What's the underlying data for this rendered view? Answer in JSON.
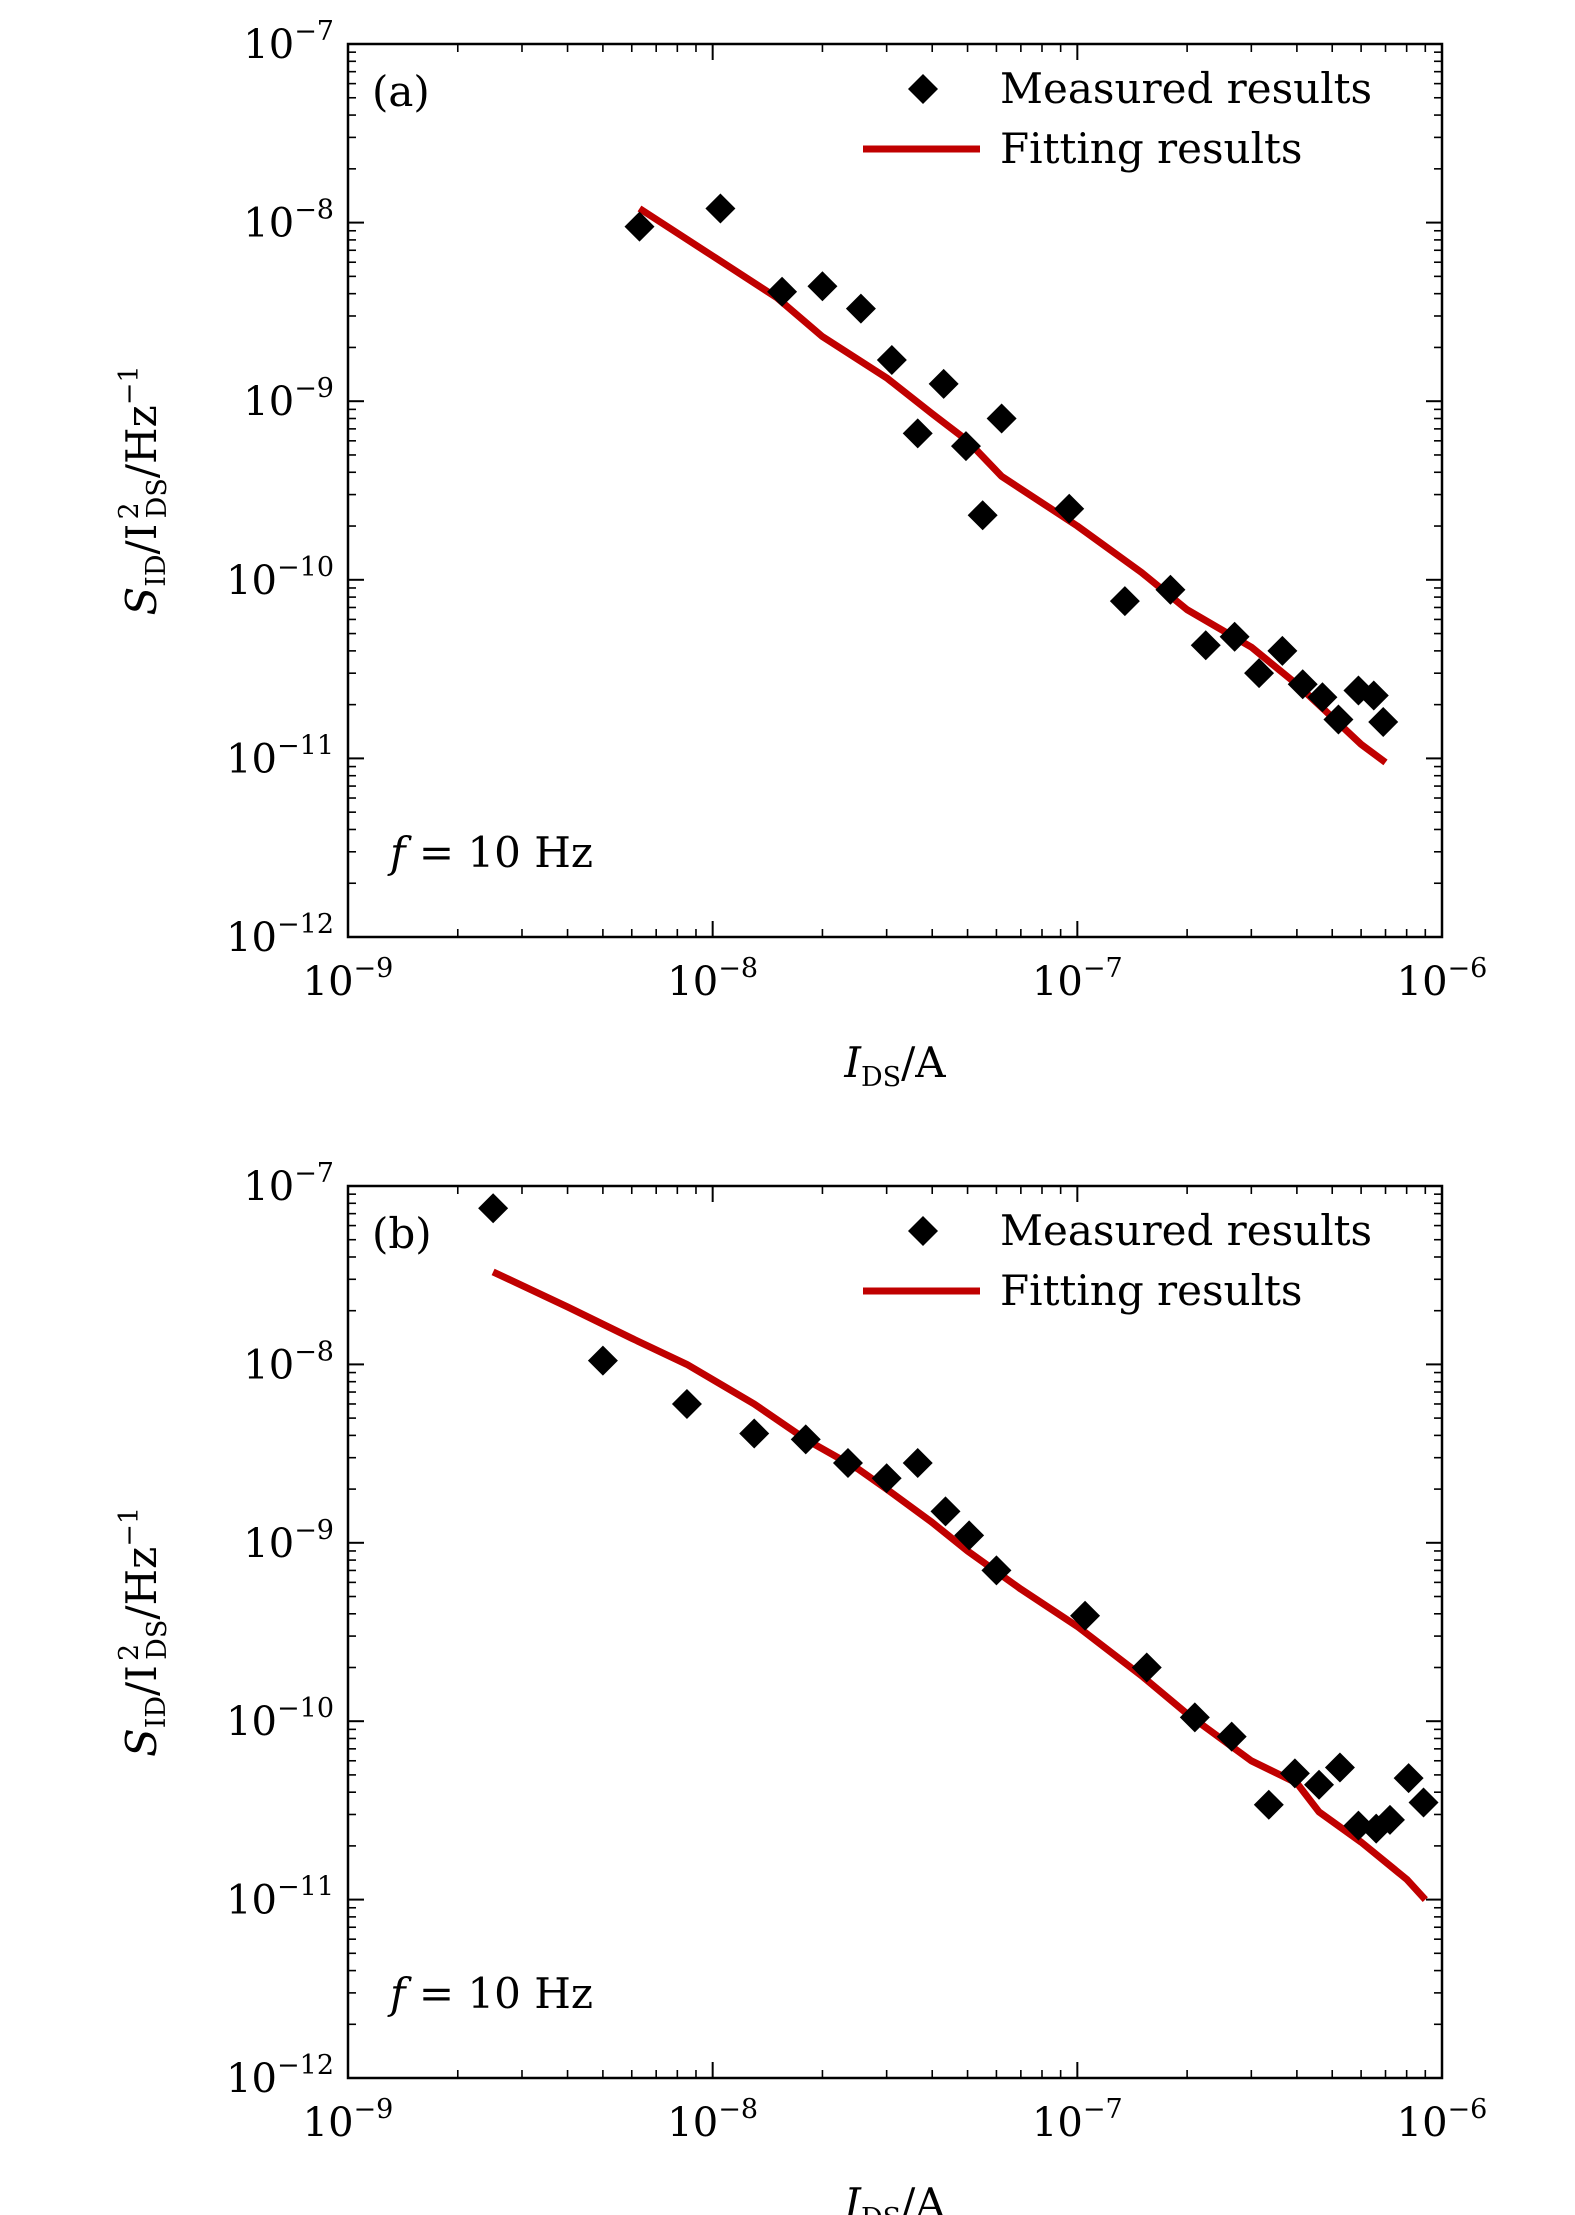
{
  "chart_data": [
    {
      "type": "scatter",
      "panel_label": "(a)",
      "annotation": {
        "var": "f",
        "text": " = 10 Hz"
      },
      "xlabel": {
        "main": "I",
        "sub": "DS",
        "tail": "/A"
      },
      "ylabel": {
        "main": "S",
        "sub": "ID",
        "mid": "/I",
        "sup": "2",
        "sub2": "DS",
        "tail": "/Hz",
        "tail_sup": "−1"
      },
      "xscale": "log",
      "yscale": "log",
      "xlim": [
        1e-09,
        1e-06
      ],
      "ylim": [
        1e-12,
        1e-07
      ],
      "x_ticks": [
        {
          "base": "10",
          "exp": "−9"
        },
        {
          "base": "10",
          "exp": "−8"
        },
        {
          "base": "10",
          "exp": "−7"
        },
        {
          "base": "10",
          "exp": "−6"
        }
      ],
      "y_ticks": [
        {
          "base": "10",
          "exp": "−12"
        },
        {
          "base": "10",
          "exp": "−11"
        },
        {
          "base": "10",
          "exp": "−10"
        },
        {
          "base": "10",
          "exp": "−9"
        },
        {
          "base": "10",
          "exp": "−8"
        },
        {
          "base": "10",
          "exp": "−7"
        }
      ],
      "grid": false,
      "legend": {
        "position": "top-right",
        "entries": [
          "Measured results",
          "Fitting results"
        ]
      },
      "series": [
        {
          "name": "Measured results",
          "style": "diamond",
          "color": "#000000",
          "points": [
            [
              6.3e-09,
              9.5e-09
            ],
            [
              1.05e-08,
              1.2e-08
            ],
            [
              1.55e-08,
              4.1e-09
            ],
            [
              2e-08,
              4.4e-09
            ],
            [
              2.55e-08,
              3.3e-09
            ],
            [
              3.1e-08,
              1.7e-09
            ],
            [
              3.65e-08,
              6.6e-10
            ],
            [
              4.3e-08,
              1.25e-09
            ],
            [
              4.95e-08,
              5.6e-10
            ],
            [
              5.5e-08,
              2.3e-10
            ],
            [
              6.2e-08,
              8e-10
            ],
            [
              9.5e-08,
              2.5e-10
            ],
            [
              1.35e-07,
              7.6e-11
            ],
            [
              1.8e-07,
              8.8e-11
            ],
            [
              2.25e-07,
              4.3e-11
            ],
            [
              2.7e-07,
              4.8e-11
            ],
            [
              3.15e-07,
              3e-11
            ],
            [
              3.65e-07,
              4e-11
            ],
            [
              4.15e-07,
              2.6e-11
            ],
            [
              4.7e-07,
              2.2e-11
            ],
            [
              5.2e-07,
              1.65e-11
            ],
            [
              5.9e-07,
              2.4e-11
            ],
            [
              6.5e-07,
              2.25e-11
            ],
            [
              6.9e-07,
              1.6e-11
            ]
          ]
        },
        {
          "name": "Fitting results",
          "style": "line",
          "color": "#c00000",
          "points": [
            [
              6.3e-09,
              1.2e-08
            ],
            [
              1e-08,
              6.5e-09
            ],
            [
              1.5e-08,
              3.8e-09
            ],
            [
              2e-08,
              2.3e-09
            ],
            [
              3e-08,
              1.35e-09
            ],
            [
              4e-08,
              8.5e-10
            ],
            [
              5e-08,
              6e-10
            ],
            [
              6.2e-08,
              3.8e-10
            ],
            [
              1e-07,
              2e-10
            ],
            [
              1.5e-07,
              1.1e-10
            ],
            [
              2e-07,
              6.8e-11
            ],
            [
              3e-07,
              4.2e-11
            ],
            [
              4e-07,
              2.6e-11
            ],
            [
              5e-07,
              1.7e-11
            ],
            [
              6e-07,
              1.2e-11
            ],
            [
              7e-07,
              9.5e-12
            ]
          ]
        }
      ]
    },
    {
      "type": "scatter",
      "panel_label": "(b)",
      "annotation": {
        "var": "f",
        "text": " = 10 Hz"
      },
      "xlabel": {
        "main": "I",
        "sub": "DS",
        "tail": "/A"
      },
      "ylabel": {
        "main": "S",
        "sub": "ID",
        "mid": "/I",
        "sup": "2",
        "sub2": "DS",
        "tail": "/Hz",
        "tail_sup": "−1"
      },
      "xscale": "log",
      "yscale": "log",
      "xlim": [
        1e-09,
        1e-06
      ],
      "ylim": [
        1e-12,
        1e-07
      ],
      "x_ticks": [
        {
          "base": "10",
          "exp": "−9"
        },
        {
          "base": "10",
          "exp": "−8"
        },
        {
          "base": "10",
          "exp": "−7"
        },
        {
          "base": "10",
          "exp": "−6"
        }
      ],
      "y_ticks": [
        {
          "base": "10",
          "exp": "−12"
        },
        {
          "base": "10",
          "exp": "−11"
        },
        {
          "base": "10",
          "exp": "−10"
        },
        {
          "base": "10",
          "exp": "−9"
        },
        {
          "base": "10",
          "exp": "−8"
        },
        {
          "base": "10",
          "exp": "−7"
        }
      ],
      "grid": false,
      "legend": {
        "position": "top-right",
        "entries": [
          "Measured results",
          "Fitting results"
        ]
      },
      "series": [
        {
          "name": "Measured results",
          "style": "diamond",
          "color": "#000000",
          "points": [
            [
              2.5e-09,
              7.5e-08
            ],
            [
              5e-09,
              1.05e-08
            ],
            [
              8.5e-09,
              6e-09
            ],
            [
              1.3e-08,
              4.1e-09
            ],
            [
              1.8e-08,
              3.8e-09
            ],
            [
              2.35e-08,
              2.8e-09
            ],
            [
              3e-08,
              2.3e-09
            ],
            [
              3.65e-08,
              2.8e-09
            ],
            [
              4.35e-08,
              1.5e-09
            ],
            [
              5.05e-08,
              1.1e-09
            ],
            [
              6e-08,
              7e-10
            ],
            [
              1.05e-07,
              3.9e-10
            ],
            [
              1.55e-07,
              2e-10
            ],
            [
              2.1e-07,
              1.05e-10
            ],
            [
              2.65e-07,
              8.2e-11
            ],
            [
              3.35e-07,
              3.4e-11
            ],
            [
              3.95e-07,
              5.1e-11
            ],
            [
              4.6e-07,
              4.4e-11
            ],
            [
              5.25e-07,
              5.5e-11
            ],
            [
              5.9e-07,
              2.6e-11
            ],
            [
              6.6e-07,
              2.5e-11
            ],
            [
              7.2e-07,
              2.8e-11
            ],
            [
              8.1e-07,
              4.8e-11
            ],
            [
              8.9e-07,
              3.5e-11
            ]
          ]
        },
        {
          "name": "Fitting results",
          "style": "line",
          "color": "#c00000",
          "points": [
            [
              2.5e-09,
              3.3e-08
            ],
            [
              4e-09,
              2.1e-08
            ],
            [
              6e-09,
              1.4e-08
            ],
            [
              8.5e-09,
              1e-08
            ],
            [
              1.3e-08,
              6e-09
            ],
            [
              1.8e-08,
              3.8e-09
            ],
            [
              2.5e-08,
              2.6e-09
            ],
            [
              3e-08,
              2e-09
            ],
            [
              4e-08,
              1.3e-09
            ],
            [
              5e-08,
              9e-10
            ],
            [
              7e-08,
              5.5e-10
            ],
            [
              1e-07,
              3.4e-10
            ],
            [
              1.5e-07,
              1.8e-10
            ],
            [
              2e-07,
              1.1e-10
            ],
            [
              3e-07,
              6e-11
            ],
            [
              4e-07,
              4.5e-11
            ],
            [
              4.6e-07,
              3.1e-11
            ],
            [
              6e-07,
              2.1e-11
            ],
            [
              8e-07,
              1.3e-11
            ],
            [
              9e-07,
              1e-11
            ]
          ]
        }
      ]
    }
  ]
}
